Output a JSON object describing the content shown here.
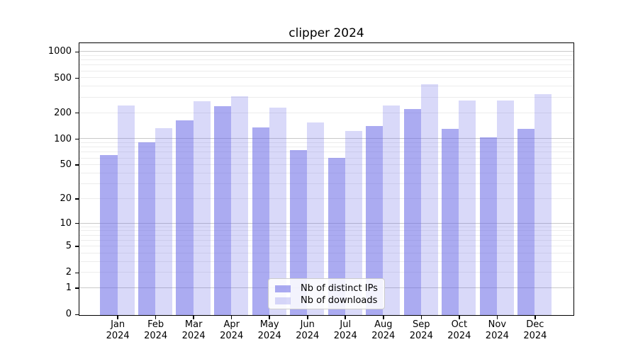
{
  "chart_data": {
    "type": "bar",
    "title": "clipper 2024",
    "categories": [
      "Jan",
      "Feb",
      "Mar",
      "Apr",
      "May",
      "Jun",
      "Jul",
      "Aug",
      "Sep",
      "Oct",
      "Nov",
      "Dec"
    ],
    "x_year_label": "2024",
    "series": [
      {
        "key": "distinct-ips",
        "name": "Nb of distinct IPs",
        "color": "#6666e6",
        "alpha": 0.55,
        "values": [
          66,
          93,
          167,
          240,
          137,
          75,
          62,
          144,
          224,
          134,
          107,
          134
        ]
      },
      {
        "key": "downloads",
        "name": "Nb of downloads",
        "color": "#6666e6",
        "alpha": 0.25,
        "values": [
          245,
          135,
          278,
          317,
          234,
          157,
          126,
          248,
          432,
          282,
          282,
          333
        ]
      }
    ],
    "xlabel": "",
    "ylabel": "",
    "y_scale": "log1p",
    "ylim": [
      0,
      1250
    ],
    "y_ticks": [
      0,
      1,
      2,
      5,
      10,
      20,
      50,
      100,
      200,
      500,
      1000
    ],
    "grid": {
      "on": true,
      "major_lines": [
        1,
        10,
        100,
        1000
      ],
      "minor_multipliers": [
        2,
        3,
        4,
        5,
        6,
        7,
        8,
        9
      ],
      "minor_decades": [
        1,
        10,
        100
      ]
    },
    "legend": {
      "position": "lower-center-inside",
      "entries": [
        "Nb of distinct IPs",
        "Nb of downloads"
      ]
    }
  }
}
